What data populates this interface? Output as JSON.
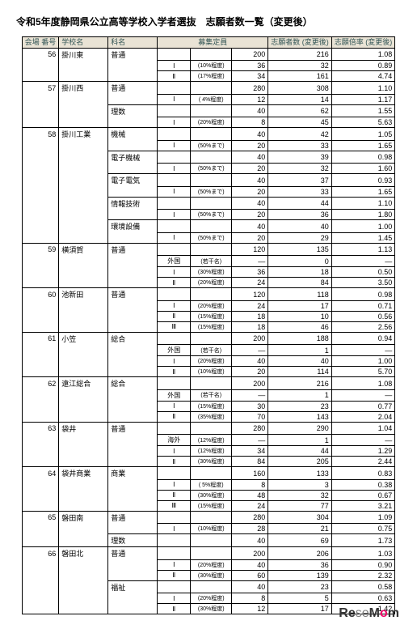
{
  "title": "令和5年度静岡県公立高等学校入学者選抜　志願者数一覧（変更後）",
  "headers": {
    "num": "会場\n番号",
    "school": "学校名",
    "dept": "科名",
    "capacity": "募集定員",
    "applicants": "志願者数\n(変更後)",
    "ratio": "志願倍率\n(変更後)"
  },
  "rows": [
    {
      "num": "56",
      "school": "掛川東",
      "dept": "普通",
      "sub1": "",
      "sub2": "",
      "cap": "200",
      "app": "216",
      "rat": "1.08"
    },
    {
      "num": "",
      "school": "",
      "dept": "",
      "sub1": "Ⅰ",
      "sub2": "(10%程度)",
      "cap": "36",
      "app": "32",
      "rat": "0.89"
    },
    {
      "num": "",
      "school": "",
      "dept": "",
      "sub1": "Ⅱ",
      "sub2": "(17%程度)",
      "cap": "34",
      "app": "161",
      "rat": "4.74"
    },
    {
      "num": "57",
      "school": "掛川西",
      "dept": "普通",
      "sub1": "",
      "sub2": "",
      "cap": "280",
      "app": "308",
      "rat": "1.10"
    },
    {
      "num": "",
      "school": "",
      "dept": "",
      "sub1": "Ⅰ",
      "sub2": "( 4%程度)",
      "cap": "12",
      "app": "14",
      "rat": "1.17"
    },
    {
      "num": "",
      "school": "",
      "dept": "理数",
      "sub1": "",
      "sub2": "",
      "cap": "40",
      "app": "62",
      "rat": "1.55"
    },
    {
      "num": "",
      "school": "",
      "dept": "",
      "sub1": "Ⅰ",
      "sub2": "(20%程度)",
      "cap": "8",
      "app": "45",
      "rat": "5.63"
    },
    {
      "num": "58",
      "school": "掛川工業",
      "dept": "機械",
      "sub1": "",
      "sub2": "",
      "cap": "40",
      "app": "42",
      "rat": "1.05"
    },
    {
      "num": "",
      "school": "",
      "dept": "",
      "sub1": "Ⅰ",
      "sub2": "(50%まで)",
      "cap": "20",
      "app": "33",
      "rat": "1.65"
    },
    {
      "num": "",
      "school": "",
      "dept": "電子機械",
      "sub1": "",
      "sub2": "",
      "cap": "40",
      "app": "39",
      "rat": "0.98"
    },
    {
      "num": "",
      "school": "",
      "dept": "",
      "sub1": "Ⅰ",
      "sub2": "(50%まで)",
      "cap": "20",
      "app": "32",
      "rat": "1.60"
    },
    {
      "num": "",
      "school": "",
      "dept": "電子電気",
      "sub1": "",
      "sub2": "",
      "cap": "40",
      "app": "37",
      "rat": "0.93"
    },
    {
      "num": "",
      "school": "",
      "dept": "",
      "sub1": "Ⅰ",
      "sub2": "(50%まで)",
      "cap": "20",
      "app": "33",
      "rat": "1.65"
    },
    {
      "num": "",
      "school": "",
      "dept": "情報技術",
      "sub1": "",
      "sub2": "",
      "cap": "40",
      "app": "44",
      "rat": "1.10"
    },
    {
      "num": "",
      "school": "",
      "dept": "",
      "sub1": "Ⅰ",
      "sub2": "(50%まで)",
      "cap": "20",
      "app": "36",
      "rat": "1.80"
    },
    {
      "num": "",
      "school": "",
      "dept": "環境設備",
      "sub1": "",
      "sub2": "",
      "cap": "40",
      "app": "40",
      "rat": "1.00"
    },
    {
      "num": "",
      "school": "",
      "dept": "",
      "sub1": "Ⅰ",
      "sub2": "(50%まで)",
      "cap": "20",
      "app": "29",
      "rat": "1.45"
    },
    {
      "num": "59",
      "school": "横須賀",
      "dept": "普通",
      "sub1": "",
      "sub2": "",
      "cap": "120",
      "app": "135",
      "rat": "1.13"
    },
    {
      "num": "",
      "school": "",
      "dept": "",
      "sub1": "外国",
      "sub2": "(若干名)",
      "cap": "—",
      "app": "0",
      "rat": "—"
    },
    {
      "num": "",
      "school": "",
      "dept": "",
      "sub1": "Ⅰ",
      "sub2": "(30%程度)",
      "cap": "36",
      "app": "18",
      "rat": "0.50"
    },
    {
      "num": "",
      "school": "",
      "dept": "",
      "sub1": "Ⅱ",
      "sub2": "(20%程度)",
      "cap": "24",
      "app": "84",
      "rat": "3.50"
    },
    {
      "num": "60",
      "school": "池新田",
      "dept": "普通",
      "sub1": "",
      "sub2": "",
      "cap": "120",
      "app": "118",
      "rat": "0.98"
    },
    {
      "num": "",
      "school": "",
      "dept": "",
      "sub1": "Ⅰ",
      "sub2": "(20%程度)",
      "cap": "24",
      "app": "17",
      "rat": "0.71"
    },
    {
      "num": "",
      "school": "",
      "dept": "",
      "sub1": "Ⅱ",
      "sub2": "(15%程度)",
      "cap": "18",
      "app": "10",
      "rat": "0.56"
    },
    {
      "num": "",
      "school": "",
      "dept": "",
      "sub1": "Ⅲ",
      "sub2": "(15%程度)",
      "cap": "18",
      "app": "46",
      "rat": "2.56"
    },
    {
      "num": "61",
      "school": "小笠",
      "dept": "総合",
      "sub1": "",
      "sub2": "",
      "cap": "200",
      "app": "188",
      "rat": "0.94"
    },
    {
      "num": "",
      "school": "",
      "dept": "",
      "sub1": "外国",
      "sub2": "(若干名)",
      "cap": "—",
      "app": "1",
      "rat": "—"
    },
    {
      "num": "",
      "school": "",
      "dept": "",
      "sub1": "Ⅰ",
      "sub2": "(20%程度)",
      "cap": "40",
      "app": "40",
      "rat": "1.00"
    },
    {
      "num": "",
      "school": "",
      "dept": "",
      "sub1": "Ⅱ",
      "sub2": "(10%程度)",
      "cap": "20",
      "app": "114",
      "rat": "5.70"
    },
    {
      "num": "62",
      "school": "遠江総合",
      "dept": "総合",
      "sub1": "",
      "sub2": "",
      "cap": "200",
      "app": "216",
      "rat": "1.08"
    },
    {
      "num": "",
      "school": "",
      "dept": "",
      "sub1": "外国",
      "sub2": "(若干名)",
      "cap": "—",
      "app": "1",
      "rat": "—"
    },
    {
      "num": "",
      "school": "",
      "dept": "",
      "sub1": "Ⅰ",
      "sub2": "(15%程度)",
      "cap": "30",
      "app": "23",
      "rat": "0.77"
    },
    {
      "num": "",
      "school": "",
      "dept": "",
      "sub1": "Ⅱ",
      "sub2": "(35%程度)",
      "cap": "70",
      "app": "143",
      "rat": "2.04"
    },
    {
      "num": "63",
      "school": "袋井",
      "dept": "普通",
      "sub1": "",
      "sub2": "",
      "cap": "280",
      "app": "290",
      "rat": "1.04"
    },
    {
      "num": "",
      "school": "",
      "dept": "",
      "sub1": "海外",
      "sub2": "(12%程度)",
      "cap": "—",
      "app": "1",
      "rat": "—"
    },
    {
      "num": "",
      "school": "",
      "dept": "",
      "sub1": "Ⅰ",
      "sub2": "(12%程度)",
      "cap": "34",
      "app": "44",
      "rat": "1.29"
    },
    {
      "num": "",
      "school": "",
      "dept": "",
      "sub1": "Ⅱ",
      "sub2": "(30%程度)",
      "cap": "84",
      "app": "205",
      "rat": "2.44"
    },
    {
      "num": "64",
      "school": "袋井商業",
      "dept": "商業",
      "sub1": "",
      "sub2": "",
      "cap": "160",
      "app": "133",
      "rat": "0.83"
    },
    {
      "num": "",
      "school": "",
      "dept": "",
      "sub1": "Ⅰ",
      "sub2": "( 5%程度)",
      "cap": "8",
      "app": "3",
      "rat": "0.38"
    },
    {
      "num": "",
      "school": "",
      "dept": "",
      "sub1": "Ⅱ",
      "sub2": "(30%程度)",
      "cap": "48",
      "app": "32",
      "rat": "0.67"
    },
    {
      "num": "",
      "school": "",
      "dept": "",
      "sub1": "Ⅲ",
      "sub2": "(15%程度)",
      "cap": "24",
      "app": "77",
      "rat": "3.21"
    },
    {
      "num": "65",
      "school": "磐田南",
      "dept": "普通",
      "sub1": "",
      "sub2": "",
      "cap": "280",
      "app": "304",
      "rat": "1.09"
    },
    {
      "num": "",
      "school": "",
      "dept": "",
      "sub1": "Ⅰ",
      "sub2": "(10%程度)",
      "cap": "28",
      "app": "21",
      "rat": "0.75"
    },
    {
      "num": "",
      "school": "",
      "dept": "理数",
      "sub1": "",
      "sub2": "",
      "cap": "40",
      "app": "69",
      "rat": "1.73"
    },
    {
      "num": "66",
      "school": "磐田北",
      "dept": "普通",
      "sub1": "",
      "sub2": "",
      "cap": "200",
      "app": "206",
      "rat": "1.03"
    },
    {
      "num": "",
      "school": "",
      "dept": "",
      "sub1": "Ⅰ",
      "sub2": "(20%程度)",
      "cap": "40",
      "app": "36",
      "rat": "0.90"
    },
    {
      "num": "",
      "school": "",
      "dept": "",
      "sub1": "Ⅱ",
      "sub2": "(30%程度)",
      "cap": "60",
      "app": "139",
      "rat": "2.32"
    },
    {
      "num": "",
      "school": "",
      "dept": "福祉",
      "sub1": "",
      "sub2": "",
      "cap": "40",
      "app": "23",
      "rat": "0.58"
    },
    {
      "num": "",
      "school": "",
      "dept": "",
      "sub1": "Ⅰ",
      "sub2": "(20%程度)",
      "cap": "8",
      "app": "5",
      "rat": "0.63"
    },
    {
      "num": "",
      "school": "",
      "dept": "",
      "sub1": "Ⅱ",
      "sub2": "(30%程度)",
      "cap": "12",
      "app": "17",
      "rat": "1.42"
    }
  ],
  "logo": {
    "part1": "Re",
    "part2": "se",
    "part3": "M",
    "part4": "o",
    "part5": "m"
  }
}
